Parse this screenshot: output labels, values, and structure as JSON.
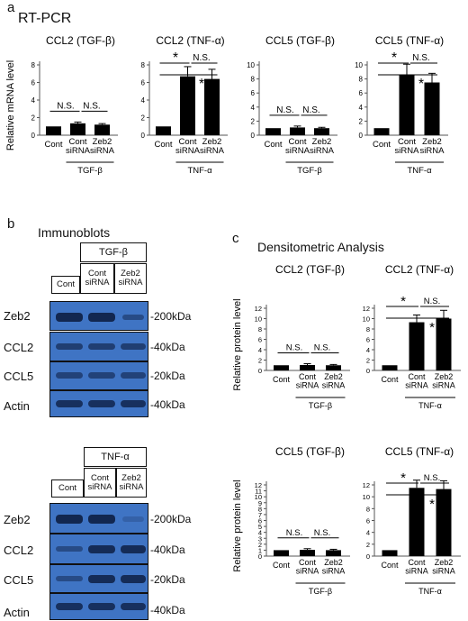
{
  "panel_a": {
    "letter": "a",
    "title": "RT-PCR"
  },
  "panel_b": {
    "letter": "b",
    "title": "Immunoblots",
    "top": {
      "treatment": "TGF-β",
      "lanes": [
        "Cont",
        "Cont siRNA",
        "Zeb2 siRNA"
      ],
      "rows": [
        {
          "label": "Zeb2",
          "kda": "-200kDa"
        },
        {
          "label": "CCL2",
          "kda": "-40kDa"
        },
        {
          "label": "CCL5",
          "kda": "-20kDa"
        },
        {
          "label": "Actin",
          "kda": "-40kDa"
        }
      ]
    },
    "bottom": {
      "treatment": "TNF-α",
      "lanes": [
        "Cont",
        "Cont siRNA",
        "Zeb2 siRNA"
      ],
      "rows": [
        {
          "label": "Zeb2",
          "kda": "-200kDa"
        },
        {
          "label": "CCL2",
          "kda": "-40kDa"
        },
        {
          "label": "CCL5",
          "kda": "-20kDa"
        },
        {
          "label": "Actin",
          "kda": "-40kDa"
        }
      ]
    }
  },
  "panel_c": {
    "letter": "c",
    "title": "Densitometric Analysis"
  },
  "colors": {
    "bar": "#000000",
    "blot": "#3f74c4",
    "band": "#0b1a3c"
  },
  "chart_data": [
    {
      "type": "bar",
      "title": "CCL2 (TGF-β)",
      "ylabel": "Relative mRNA level",
      "categories": [
        "Cont",
        "Cont siRNA",
        "Zeb2 siRNA"
      ],
      "group_label": "TGF-β",
      "values": [
        1.0,
        1.35,
        1.2
      ],
      "errors": [
        0,
        0.15,
        0.12
      ],
      "ylim": [
        0,
        8
      ],
      "yticks": [
        0,
        2,
        4,
        6,
        8
      ],
      "annotations": [
        "N.S.",
        "N.S."
      ]
    },
    {
      "type": "bar",
      "title": "CCL2 (TNF-α)",
      "ylabel": "",
      "categories": [
        "Cont",
        "Cont siRNA",
        "Zeb2 siRNA"
      ],
      "group_label": "TNF-α",
      "values": [
        1.0,
        6.7,
        6.4
      ],
      "errors": [
        0,
        1.1,
        1.1
      ],
      "ylim": [
        0,
        8
      ],
      "yticks": [
        0,
        2,
        4,
        6,
        8
      ],
      "annotations": [
        "*",
        "N.S.",
        "*"
      ]
    },
    {
      "type": "bar",
      "title": "CCL5 (TGF-β)",
      "ylabel": "",
      "categories": [
        "Cont",
        "Cont siRNA",
        "Zeb2 siRNA"
      ],
      "group_label": "TGF-β",
      "values": [
        1.0,
        1.1,
        1.0
      ],
      "errors": [
        0,
        0.2,
        0.12
      ],
      "ylim": [
        0,
        10
      ],
      "yticks": [
        0,
        2,
        4,
        6,
        8,
        10
      ],
      "annotations": [
        "N.S.",
        "N.S."
      ]
    },
    {
      "type": "bar",
      "title": "CCL5 (TNF-α)",
      "ylabel": "",
      "categories": [
        "Cont",
        "Cont siRNA",
        "Zeb2 siRNA"
      ],
      "group_label": "TNF-α",
      "values": [
        1.0,
        8.6,
        7.5
      ],
      "errors": [
        0,
        1.5,
        1.3
      ],
      "ylim": [
        0,
        10
      ],
      "yticks": [
        0,
        2,
        4,
        6,
        8,
        10
      ],
      "annotations": [
        "*",
        "N.S.",
        "*"
      ]
    },
    {
      "type": "bar",
      "title": "CCL2 (TGF-β)",
      "ylabel": "Relative protein level",
      "categories": [
        "Cont",
        "Cont siRNA",
        "Zeb2 siRNA"
      ],
      "group_label": "TGF-β",
      "values": [
        1.0,
        1.05,
        1.0
      ],
      "errors": [
        0,
        0.25,
        0.15
      ],
      "ylim": [
        0,
        12
      ],
      "yticks": [
        0,
        2,
        4,
        6,
        8,
        10,
        12
      ],
      "annotations": [
        "N.S.",
        "N.S."
      ]
    },
    {
      "type": "bar",
      "title": "CCL2 (TNF-α)",
      "ylabel": "",
      "categories": [
        "Cont",
        "Cont siRNA",
        "Zeb2 siRNA"
      ],
      "group_label": "TNF-α",
      "values": [
        1.0,
        9.3,
        10.0
      ],
      "errors": [
        0,
        1.4,
        1.6
      ],
      "ylim": [
        0,
        12
      ],
      "yticks": [
        0,
        2,
        4,
        6,
        8,
        10,
        12
      ],
      "annotations": [
        "*",
        "N.S.",
        "*"
      ]
    },
    {
      "type": "bar",
      "title": "CCL5 (TGF-β)",
      "ylabel": "Relative protein level",
      "categories": [
        "Cont",
        "Cont siRNA",
        "Zeb2 siRNA"
      ],
      "group_label": "TGF-β",
      "values": [
        1.0,
        1.05,
        1.0
      ],
      "errors": [
        0,
        0.2,
        0.15
      ],
      "ylim": [
        0,
        12
      ],
      "yticks": [
        0,
        1,
        2,
        3,
        4,
        5,
        6,
        7,
        8,
        9,
        10,
        11,
        12
      ],
      "annotations": [
        "N.S.",
        "N.S."
      ]
    },
    {
      "type": "bar",
      "title": "CCL5 (TNF-α)",
      "ylabel": "",
      "categories": [
        "Cont",
        "Cont siRNA",
        "Zeb2 siRNA"
      ],
      "group_label": "TNF-α",
      "values": [
        1.0,
        11.5,
        11.3
      ],
      "errors": [
        0,
        1.3,
        1.4
      ],
      "ylim": [
        0,
        12
      ],
      "yticks": [
        0,
        2,
        4,
        6,
        8,
        10,
        12
      ],
      "annotations": [
        "*",
        "N.S.",
        "*"
      ]
    }
  ]
}
